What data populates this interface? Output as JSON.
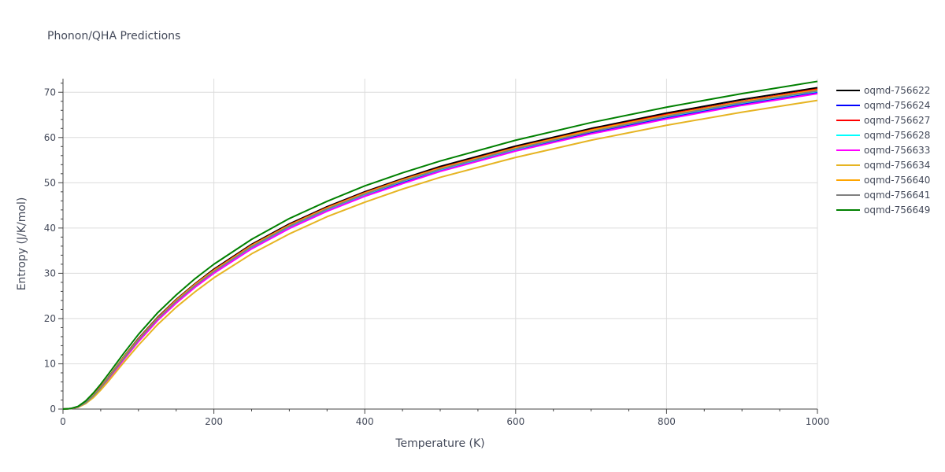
{
  "chart_data": {
    "type": "line",
    "title": "Phonon/QHA Predictions",
    "xlabel": "Temperature (K)",
    "ylabel": "Entropy (J/K/mol)",
    "xlim": [
      0,
      1000
    ],
    "ylim": [
      0,
      73
    ],
    "xticks": [
      0,
      200,
      400,
      600,
      800,
      1000
    ],
    "yticks": [
      0,
      10,
      20,
      30,
      40,
      50,
      60,
      70
    ],
    "grid": true,
    "legend_position": "top-right",
    "x": [
      0,
      10,
      20,
      30,
      40,
      50,
      60,
      80,
      100,
      125,
      150,
      175,
      200,
      250,
      300,
      350,
      400,
      450,
      500,
      600,
      700,
      800,
      900,
      1000
    ],
    "series": [
      {
        "name": "oqmd-756622",
        "color": "#000000",
        "values": [
          0,
          0.1,
          0.5,
          1.5,
          3.0,
          4.9,
          7.0,
          11.4,
          15.6,
          20.2,
          24.2,
          27.7,
          30.9,
          36.4,
          40.9,
          44.7,
          48.0,
          50.9,
          53.6,
          58.1,
          62.0,
          65.4,
          68.4,
          71.0
        ]
      },
      {
        "name": "oqmd-756624",
        "color": "#0000ff",
        "values": [
          0,
          0.1,
          0.5,
          1.4,
          2.8,
          4.6,
          6.7,
          11.0,
          15.1,
          19.7,
          23.6,
          27.1,
          30.2,
          35.7,
          40.1,
          43.9,
          47.2,
          50.1,
          52.7,
          57.2,
          61.0,
          64.4,
          67.3,
          69.9
        ]
      },
      {
        "name": "oqmd-756627",
        "color": "#ff0000",
        "values": [
          0,
          0.1,
          0.5,
          1.5,
          3.0,
          4.9,
          6.9,
          11.3,
          15.5,
          20.1,
          24.1,
          27.6,
          30.7,
          36.2,
          40.7,
          44.5,
          47.8,
          50.7,
          53.3,
          57.8,
          61.7,
          65.1,
          68.0,
          70.7
        ]
      },
      {
        "name": "oqmd-756628",
        "color": "#00ffff",
        "values": [
          0,
          0.1,
          0.5,
          1.4,
          2.9,
          4.7,
          6.8,
          11.1,
          15.2,
          19.8,
          23.8,
          27.3,
          30.4,
          35.8,
          40.3,
          44.1,
          47.4,
          50.3,
          52.9,
          57.4,
          61.3,
          64.6,
          67.6,
          70.2
        ]
      },
      {
        "name": "oqmd-756633",
        "color": "#ff00ff",
        "values": [
          0,
          0.1,
          0.4,
          1.3,
          2.7,
          4.5,
          6.5,
          10.8,
          14.9,
          19.5,
          23.4,
          26.9,
          30.0,
          35.4,
          39.9,
          43.7,
          47.0,
          49.8,
          52.5,
          57.0,
          60.8,
          64.1,
          67.1,
          69.7
        ]
      },
      {
        "name": "oqmd-756634",
        "color": "#e6b422",
        "values": [
          0,
          0.1,
          0.4,
          1.2,
          2.5,
          4.2,
          6.1,
          10.2,
          14.1,
          18.6,
          22.5,
          25.9,
          29.0,
          34.3,
          38.7,
          42.5,
          45.7,
          48.6,
          51.2,
          55.6,
          59.4,
          62.7,
          65.6,
          68.2
        ]
      },
      {
        "name": "oqmd-756640",
        "color": "#ffa500",
        "values": [
          0,
          0.1,
          0.5,
          1.5,
          3.0,
          4.8,
          6.9,
          11.3,
          15.4,
          20.0,
          24.0,
          27.5,
          30.6,
          36.1,
          40.6,
          44.4,
          47.7,
          50.6,
          53.2,
          57.7,
          61.6,
          64.9,
          67.9,
          70.5
        ]
      },
      {
        "name": "oqmd-756641",
        "color": "#808080",
        "values": [
          0,
          0.1,
          0.5,
          1.4,
          2.9,
          4.7,
          6.8,
          11.1,
          15.3,
          19.9,
          23.8,
          27.3,
          30.4,
          35.9,
          40.4,
          44.2,
          47.5,
          50.4,
          53.0,
          57.5,
          61.3,
          64.7,
          67.7,
          70.3
        ]
      },
      {
        "name": "oqmd-756649",
        "color": "#008000",
        "values": [
          0,
          0.1,
          0.6,
          1.8,
          3.5,
          5.5,
          7.7,
          12.2,
          16.5,
          21.2,
          25.2,
          28.8,
          32.0,
          37.5,
          42.1,
          45.9,
          49.3,
          52.2,
          54.8,
          59.4,
          63.3,
          66.7,
          69.7,
          72.4
        ]
      }
    ]
  }
}
